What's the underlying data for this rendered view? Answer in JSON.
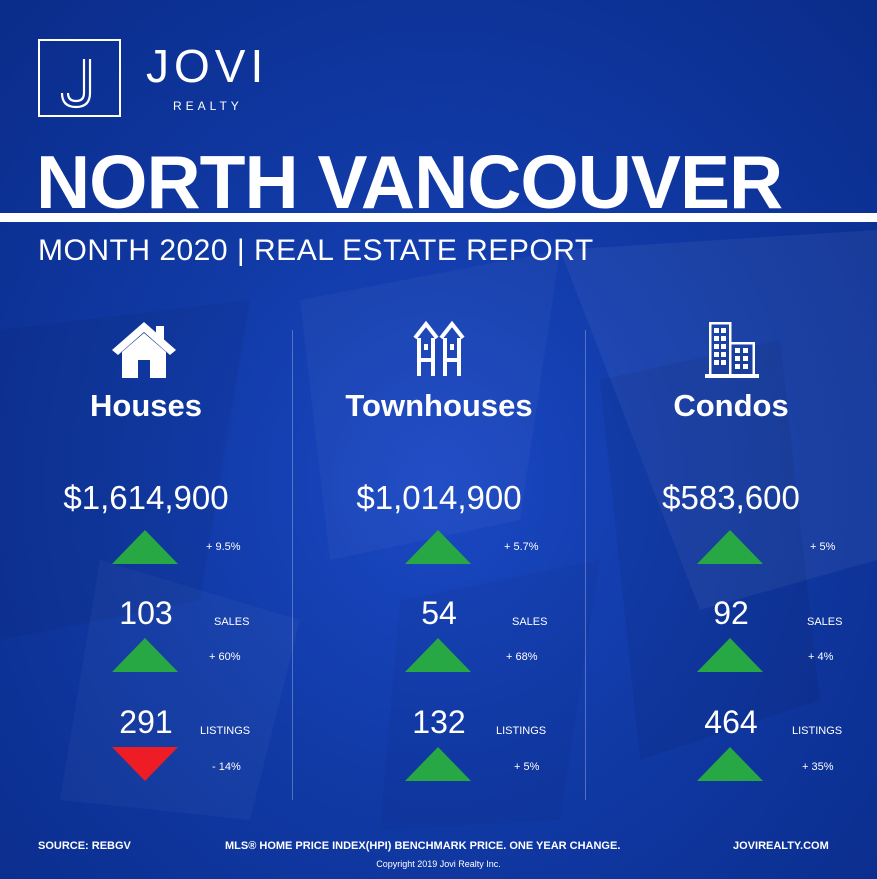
{
  "brand": {
    "name": "JOVI",
    "sub": "REALTY",
    "mark": "J"
  },
  "title": "NORTH VANCOUVER",
  "subtitle": "MONTH 2020 | REAL ESTATE REPORT",
  "colors": {
    "background": "#113aa6",
    "up": "#27a844",
    "down": "#ee1c25",
    "text": "#ffffff"
  },
  "columns": [
    {
      "icon": "house-icon",
      "name": "Houses",
      "price": "$1,614,900",
      "price_change": "+ 9.5%",
      "price_trend": "up",
      "sales": "103",
      "sales_label": "SALES",
      "sales_change": "+ 60%",
      "sales_trend": "up",
      "listings": "291",
      "listings_label": "LISTINGS",
      "listings_change": "- 14%",
      "listings_trend": "down"
    },
    {
      "icon": "townhouse-icon",
      "name": "Townhouses",
      "price": "$1,014,900",
      "price_change": "+ 5.7%",
      "price_trend": "up",
      "sales": "54",
      "sales_label": "SALES",
      "sales_change": "+ 68%",
      "sales_trend": "up",
      "listings": "132",
      "listings_label": "LISTINGS",
      "listings_change": "+ 5%",
      "listings_trend": "up"
    },
    {
      "icon": "condo-building-icon",
      "name": "Condos",
      "price": "$583,600",
      "price_change": "+ 5%",
      "price_trend": "up",
      "sales": "92",
      "sales_label": "SALES",
      "sales_change": "+ 4%",
      "sales_trend": "up",
      "listings": "464",
      "listings_label": "LISTINGS",
      "listings_change": "+ 35%",
      "listings_trend": "up"
    }
  ],
  "footer": {
    "source": "SOURCE:  REBGV",
    "note": "MLS® HOME PRICE INDEX(HPI) BENCHMARK PRICE. ONE YEAR CHANGE.",
    "website": "JOVIREALTY.COM",
    "copyright": "Copyright 2019 Jovi Realty Inc."
  }
}
